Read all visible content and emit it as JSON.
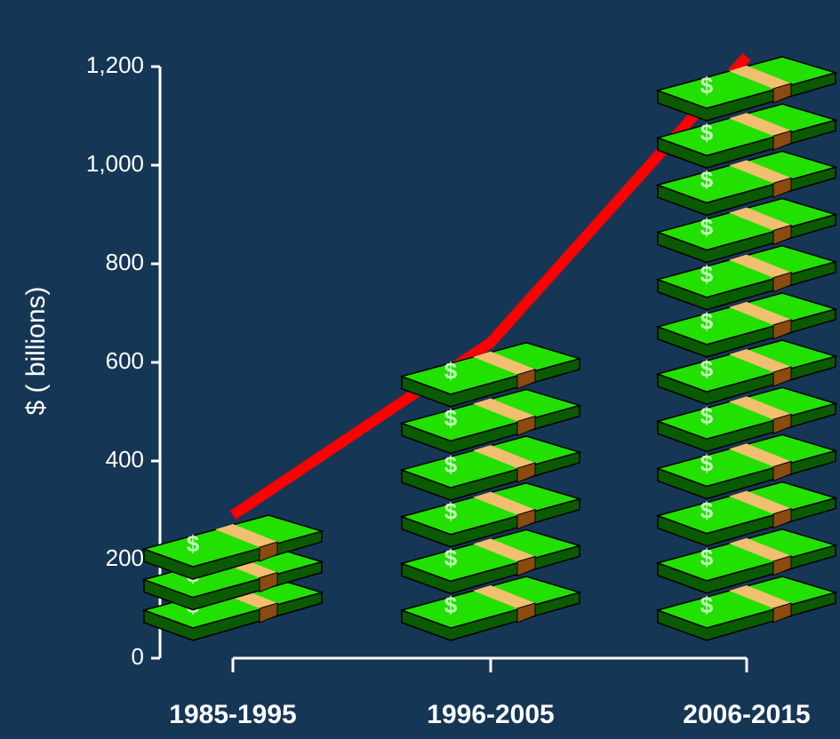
{
  "chart_data": {
    "type": "pictograph",
    "ylabel": "$ ( billions)",
    "categories": [
      "1985-1995",
      "1996-2005",
      "2006-2015"
    ],
    "values": [
      290,
      640,
      1220
    ],
    "line_color": "#ff0000",
    "color": "#22e000",
    "ylim": [
      0,
      1200
    ],
    "yticks": [
      0,
      {
        "value": 200,
        "label": "200"
      },
      400,
      600,
      800,
      {
        "value": 1000,
        "label": "1,000"
      },
      {
        "value": 1200,
        "label": "1,200"
      }
    ]
  }
}
